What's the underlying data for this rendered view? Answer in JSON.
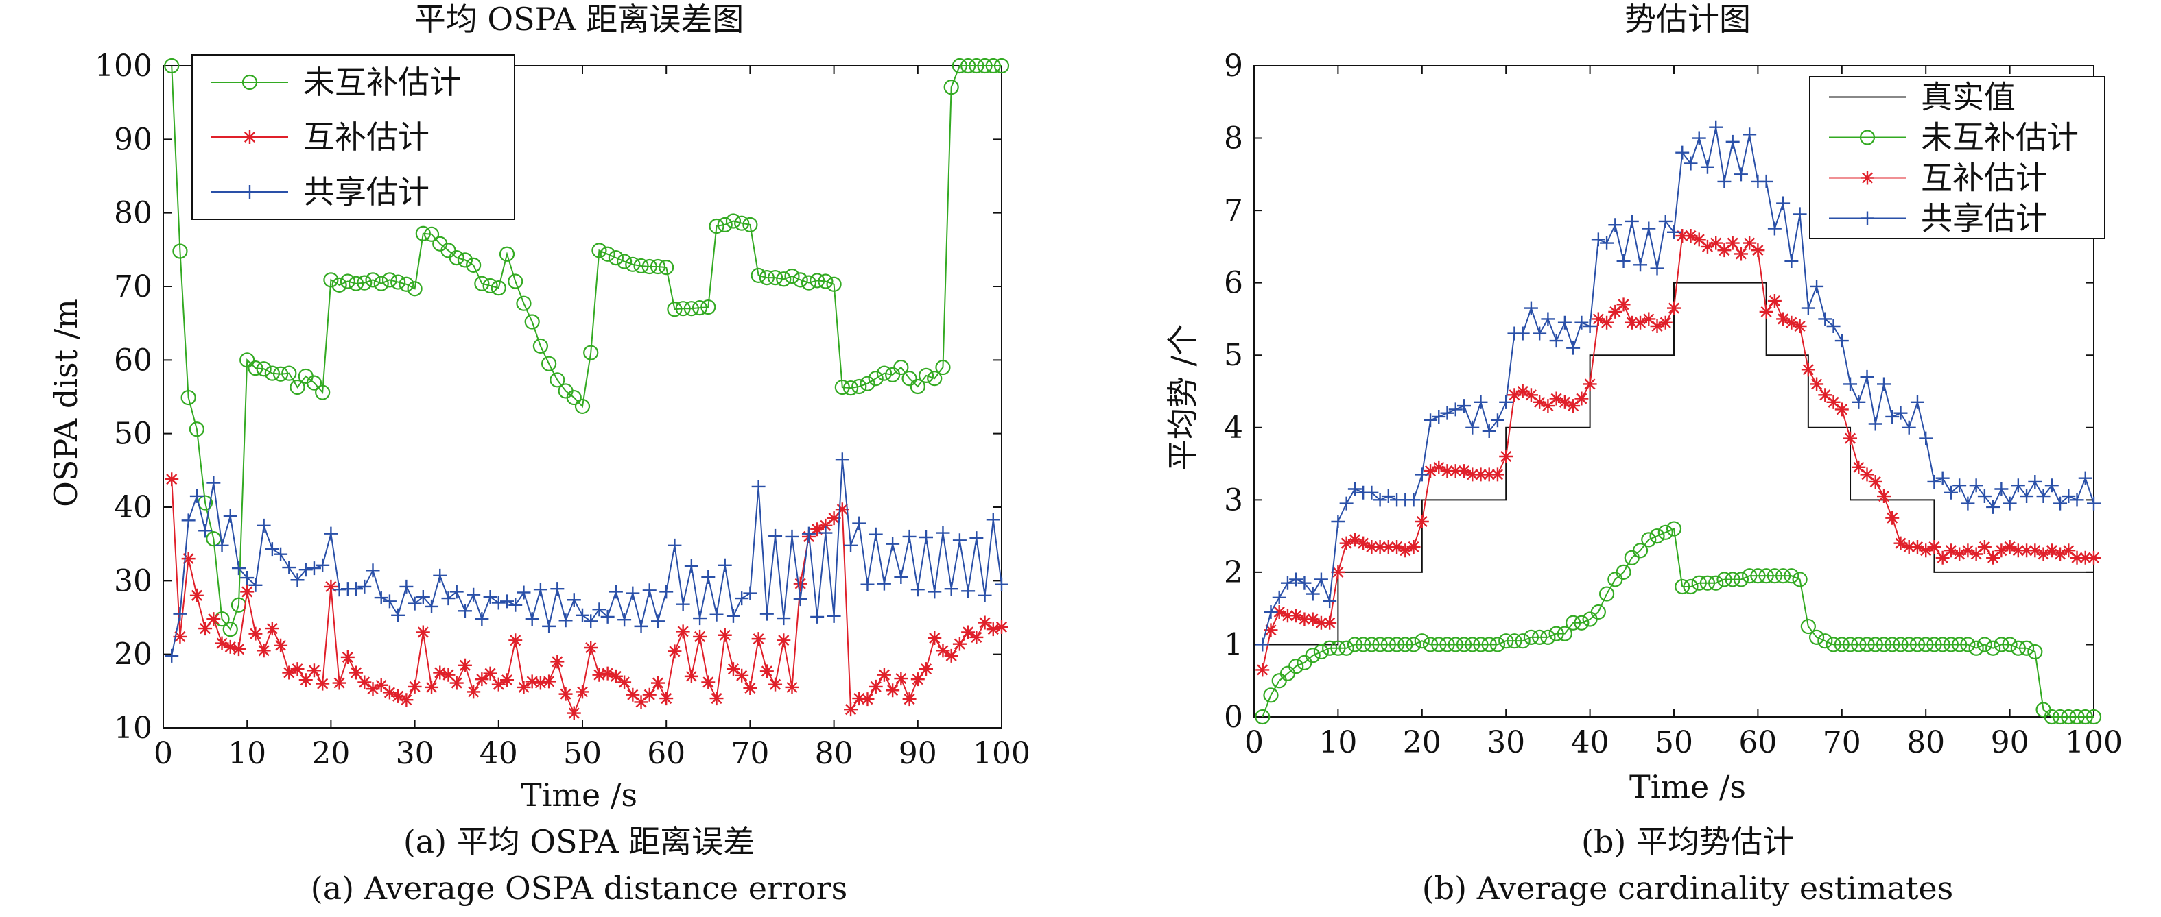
{
  "chart_data": [
    {
      "type": "line",
      "title": "平均 OSPA 距离误差图",
      "xlabel": "Time /s",
      "ylabel": "OSPA dist /m",
      "xlim": [
        0,
        100
      ],
      "ylim": [
        10,
        100
      ],
      "xticks": [
        "0",
        "10",
        "20",
        "30",
        "40",
        "50",
        "60",
        "70",
        "80",
        "90",
        "100"
      ],
      "yticks": [
        "10",
        "20",
        "30",
        "40",
        "50",
        "60",
        "70",
        "80",
        "90",
        "100"
      ],
      "legend": "top-left",
      "caption_cn": "(a)  平均 OSPA 距离误差",
      "caption_en": "(a) Average OSPA distance errors",
      "x": [
        1,
        2,
        3,
        4,
        5,
        6,
        7,
        8,
        9,
        10,
        11,
        12,
        13,
        14,
        15,
        16,
        17,
        18,
        19,
        20,
        21,
        22,
        23,
        24,
        25,
        26,
        27,
        28,
        29,
        30,
        31,
        32,
        33,
        34,
        35,
        36,
        37,
        38,
        39,
        40,
        41,
        42,
        43,
        44,
        45,
        46,
        47,
        48,
        49,
        50,
        51,
        52,
        53,
        54,
        55,
        56,
        57,
        58,
        59,
        60,
        61,
        62,
        63,
        64,
        65,
        66,
        67,
        68,
        69,
        70,
        71,
        72,
        73,
        74,
        75,
        76,
        77,
        78,
        79,
        80,
        81,
        82,
        83,
        84,
        85,
        86,
        87,
        88,
        89,
        90,
        91,
        92,
        93,
        94,
        95,
        96,
        97,
        98,
        99,
        100
      ],
      "series": [
        {
          "name": "未互补估计",
          "color": "#33aa22",
          "marker": "circle",
          "values": [
            100,
            74.8,
            54.9,
            50.6,
            40.6,
            35.7,
            24.8,
            23.4,
            26.7,
            60.0,
            58.9,
            58.8,
            58.2,
            58.1,
            58.2,
            56.3,
            57.8,
            56.9,
            55.6,
            70.9,
            70.2,
            70.7,
            70.4,
            70.5,
            70.9,
            70.4,
            70.9,
            70.6,
            70.3,
            69.7,
            77.2,
            77.1,
            75.8,
            74.9,
            73.9,
            73.6,
            72.9,
            70.4,
            70.1,
            69.8,
            74.4,
            70.7,
            67.7,
            65.2,
            61.9,
            59.5,
            57.3,
            55.8,
            54.9,
            53.7,
            61.0,
            74.9,
            74.4,
            73.9,
            73.4,
            73.0,
            72.8,
            72.7,
            72.7,
            72.6,
            66.9,
            67.0,
            67.0,
            67.1,
            67.2,
            78.2,
            78.4,
            78.9,
            78.6,
            78.4,
            71.5,
            71.2,
            71.2,
            71.0,
            71.4,
            70.9,
            70.5,
            70.8,
            70.7,
            70.3,
            56.3,
            56.2,
            56.4,
            56.8,
            57.5,
            58.2,
            58.0,
            59.0,
            57.5,
            56.4,
            57.9,
            57.5,
            59.0,
            97.1,
            100,
            100,
            100,
            100,
            100,
            100
          ]
        },
        {
          "name": "互补估计",
          "color": "#e0202a",
          "marker": "star",
          "values": [
            43.8,
            22.4,
            33.0,
            28.0,
            23.5,
            24.8,
            21.5,
            21.0,
            20.7,
            28.5,
            22.8,
            20.5,
            23.5,
            21.2,
            17.5,
            18.0,
            16.5,
            17.8,
            16.0,
            29.2,
            16.1,
            19.6,
            17.5,
            16.2,
            15.3,
            15.8,
            14.8,
            14.3,
            13.8,
            15.6,
            23.0,
            15.5,
            17.5,
            17.2,
            16.1,
            18.5,
            14.9,
            16.6,
            17.4,
            15.9,
            16.5,
            21.9,
            15.5,
            16.3,
            16.1,
            16.3,
            19.0,
            14.6,
            12.0,
            14.9,
            20.9,
            17.2,
            17.4,
            17.0,
            16.2,
            14.5,
            13.5,
            14.5,
            16.1,
            14.0,
            20.4,
            23.1,
            17.0,
            22.4,
            16.2,
            14.0,
            22.6,
            18.0,
            17.1,
            15.4,
            22.1,
            17.7,
            15.9,
            21.9,
            15.5,
            29.6,
            36.0,
            37.0,
            37.5,
            38.5,
            39.7,
            12.5,
            14.0,
            13.9,
            15.6,
            17.2,
            15.1,
            16.7,
            13.9,
            16.6,
            18.0,
            22.2,
            20.5,
            19.8,
            21.4,
            23.0,
            22.3,
            24.3,
            23.4,
            23.7
          ]
        },
        {
          "name": "共享估计",
          "color": "#2a50a8",
          "marker": "plus",
          "values": [
            19.8,
            25.5,
            38.2,
            41.5,
            36.8,
            43.3,
            34.8,
            38.8,
            31.7,
            30.4,
            29.4,
            37.5,
            34.3,
            33.6,
            31.8,
            30.1,
            31.5,
            31.7,
            32.1,
            36.4,
            28.8,
            28.9,
            28.9,
            29.2,
            31.4,
            27.7,
            27.2,
            25.3,
            29.2,
            26.9,
            27.8,
            26.5,
            30.7,
            27.6,
            28.5,
            25.9,
            28.1,
            24.8,
            27.8,
            27.0,
            27.2,
            26.7,
            28.4,
            24.8,
            28.8,
            23.8,
            28.9,
            24.6,
            27.4,
            25.3,
            24.5,
            26.1,
            25.1,
            28.5,
            24.7,
            28.3,
            23.8,
            28.7,
            24.5,
            28.5,
            34.8,
            26.8,
            32.0,
            24.9,
            30.5,
            25.4,
            32.1,
            25.2,
            27.6,
            28.3,
            42.8,
            25.5,
            36.1,
            24.9,
            36.0,
            27.5,
            36.4,
            25.1,
            36.5,
            25.2,
            46.5,
            34.8,
            37.8,
            29.5,
            36.3,
            29.6,
            35.0,
            30.5,
            36.0,
            28.8,
            35.9,
            28.5,
            36.5,
            28.9,
            35.5,
            28.6,
            35.8,
            28.0,
            38.3,
            29.5
          ]
        }
      ]
    },
    {
      "type": "line",
      "title": "势估计图",
      "xlabel": "Time /s",
      "ylabel": "平均势 /个",
      "xlim": [
        0,
        100
      ],
      "ylim": [
        0,
        9
      ],
      "xticks": [
        "0",
        "10",
        "20",
        "30",
        "40",
        "50",
        "60",
        "70",
        "80",
        "90",
        "100"
      ],
      "yticks": [
        "0",
        "1",
        "2",
        "3",
        "4",
        "5",
        "6",
        "7",
        "8",
        "9"
      ],
      "legend": "top-right",
      "caption_cn": "(b)  平均势估计",
      "caption_en": "(b) Average cardinality estimates",
      "x": [
        1,
        2,
        3,
        4,
        5,
        6,
        7,
        8,
        9,
        10,
        11,
        12,
        13,
        14,
        15,
        16,
        17,
        18,
        19,
        20,
        21,
        22,
        23,
        24,
        25,
        26,
        27,
        28,
        29,
        30,
        31,
        32,
        33,
        34,
        35,
        36,
        37,
        38,
        39,
        40,
        41,
        42,
        43,
        44,
        45,
        46,
        47,
        48,
        49,
        50,
        51,
        52,
        53,
        54,
        55,
        56,
        57,
        58,
        59,
        60,
        61,
        62,
        63,
        64,
        65,
        66,
        67,
        68,
        69,
        70,
        71,
        72,
        73,
        74,
        75,
        76,
        77,
        78,
        79,
        80,
        81,
        82,
        83,
        84,
        85,
        86,
        87,
        88,
        89,
        90,
        91,
        92,
        93,
        94,
        95,
        96,
        97,
        98,
        99,
        100
      ],
      "truth": {
        "name": "真实值",
        "color": "#111111",
        "steps": [
          [
            0,
            1
          ],
          [
            10,
            2
          ],
          [
            20,
            3
          ],
          [
            30,
            4
          ],
          [
            40,
            5
          ],
          [
            50,
            6
          ],
          [
            61,
            5
          ],
          [
            66,
            4
          ],
          [
            71,
            3
          ],
          [
            81,
            2
          ],
          [
            100,
            2
          ]
        ]
      },
      "series": [
        {
          "name": "未互补估计",
          "color": "#33aa22",
          "marker": "circle",
          "values": [
            0.0,
            0.3,
            0.5,
            0.6,
            0.7,
            0.75,
            0.85,
            0.9,
            0.95,
            0.95,
            0.95,
            1.0,
            1.0,
            1.0,
            1.0,
            1.0,
            1.0,
            1.0,
            1.0,
            1.05,
            1.0,
            1.0,
            1.0,
            1.0,
            1.0,
            1.0,
            1.0,
            1.0,
            1.0,
            1.05,
            1.05,
            1.05,
            1.1,
            1.1,
            1.1,
            1.15,
            1.15,
            1.3,
            1.3,
            1.35,
            1.45,
            1.7,
            1.9,
            2.0,
            2.2,
            2.3,
            2.45,
            2.5,
            2.55,
            2.6,
            1.8,
            1.8,
            1.85,
            1.85,
            1.85,
            1.9,
            1.9,
            1.9,
            1.95,
            1.95,
            1.95,
            1.95,
            1.95,
            1.95,
            1.9,
            1.25,
            1.1,
            1.05,
            1.0,
            1.0,
            1.0,
            1.0,
            1.0,
            1.0,
            1.0,
            1.0,
            1.0,
            1.0,
            1.0,
            1.0,
            1.0,
            1.0,
            1.0,
            1.0,
            1.0,
            0.95,
            1.0,
            0.95,
            1.0,
            1.0,
            0.95,
            0.95,
            0.9,
            0.1,
            0.0,
            0.0,
            0.0,
            0.0,
            0.0,
            0.0
          ]
        },
        {
          "name": "互补估计",
          "color": "#e0202a",
          "marker": "star",
          "values": [
            0.65,
            1.2,
            1.45,
            1.4,
            1.4,
            1.35,
            1.35,
            1.3,
            1.3,
            2.0,
            2.4,
            2.45,
            2.4,
            2.35,
            2.35,
            2.35,
            2.35,
            2.3,
            2.35,
            2.7,
            3.4,
            3.45,
            3.4,
            3.4,
            3.4,
            3.35,
            3.35,
            3.35,
            3.35,
            3.6,
            4.45,
            4.5,
            4.45,
            4.35,
            4.3,
            4.4,
            4.35,
            4.3,
            4.4,
            4.6,
            5.5,
            5.45,
            5.6,
            5.7,
            5.45,
            5.45,
            5.5,
            5.4,
            5.45,
            5.65,
            6.65,
            6.65,
            6.6,
            6.5,
            6.55,
            6.45,
            6.55,
            6.4,
            6.55,
            6.45,
            5.6,
            5.75,
            5.5,
            5.45,
            5.4,
            4.8,
            4.6,
            4.45,
            4.35,
            4.25,
            3.85,
            3.45,
            3.35,
            3.25,
            3.05,
            2.75,
            2.4,
            2.35,
            2.35,
            2.3,
            2.35,
            2.2,
            2.3,
            2.25,
            2.3,
            2.25,
            2.35,
            2.2,
            2.3,
            2.35,
            2.3,
            2.3,
            2.3,
            2.25,
            2.3,
            2.25,
            2.3,
            2.2,
            2.2,
            2.2
          ]
        },
        {
          "name": "共享估计",
          "color": "#2a50a8",
          "marker": "plus",
          "values": [
            1.0,
            1.45,
            1.65,
            1.85,
            1.9,
            1.85,
            1.7,
            1.9,
            1.6,
            2.7,
            2.95,
            3.15,
            3.1,
            3.1,
            3.0,
            3.05,
            3.0,
            3.0,
            3.0,
            3.35,
            4.1,
            4.15,
            4.2,
            4.25,
            4.3,
            4.0,
            4.35,
            3.95,
            4.1,
            4.35,
            5.3,
            5.3,
            5.65,
            5.3,
            5.5,
            5.2,
            5.45,
            5.1,
            5.45,
            5.4,
            6.6,
            6.55,
            6.8,
            6.3,
            6.85,
            6.25,
            6.75,
            6.2,
            6.85,
            6.7,
            7.8,
            7.65,
            8.0,
            7.6,
            8.15,
            7.4,
            7.95,
            7.5,
            8.05,
            7.4,
            7.4,
            6.75,
            7.1,
            6.3,
            6.95,
            5.65,
            5.95,
            5.5,
            5.4,
            5.2,
            4.6,
            4.35,
            4.7,
            4.05,
            4.6,
            4.15,
            4.2,
            4.0,
            4.35,
            3.85,
            3.25,
            3.3,
            3.1,
            3.2,
            2.95,
            3.2,
            3.05,
            2.9,
            3.15,
            2.95,
            3.2,
            3.05,
            3.25,
            3.05,
            3.2,
            2.95,
            3.05,
            3.0,
            3.3,
            2.95
          ]
        }
      ]
    }
  ]
}
